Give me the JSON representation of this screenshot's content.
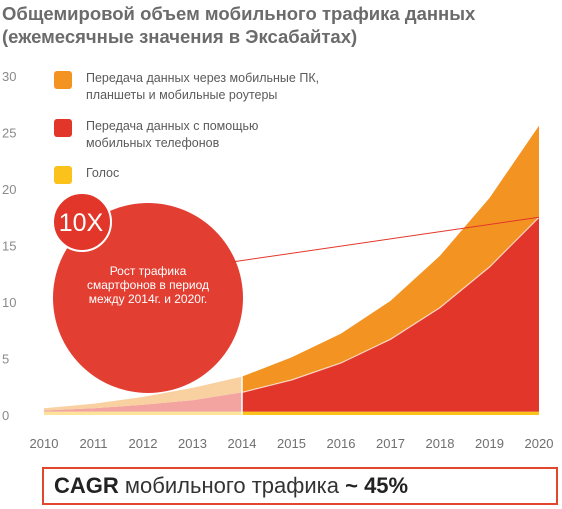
{
  "header": {
    "title_line1": "Общемировой объем мобильного трафика данных",
    "title_line2": "(ежемесячные значения в Эксабайтах)"
  },
  "legend": [
    {
      "label_line1": "Передача данных через мобильные ПК,",
      "label_line2": "планшеты и мобильные роутеры",
      "color": "#f39322"
    },
    {
      "label_line1": "Передача данных с помощью",
      "label_line2": "мобильных телефонов",
      "color": "#e2362a"
    },
    {
      "label_line1": "Голос",
      "label_line2": "",
      "color": "#fbc21b"
    }
  ],
  "callout": {
    "badge": "10X",
    "text": "Рост трафика смартфонов в период между 2014г. и 2020г."
  },
  "footer": {
    "bold1": "CAGR",
    "mid": " мобильного трафика ",
    "bold2": "~ 45%"
  },
  "chart_data": {
    "type": "area",
    "stacked": true,
    "x": [
      2010,
      2011,
      2012,
      2013,
      2014,
      2015,
      2016,
      2017,
      2018,
      2019,
      2020
    ],
    "xlabels": [
      "2010",
      "2011",
      "2012",
      "2013",
      "2014",
      "2015",
      "2016",
      "2017",
      "2018",
      "2019",
      "2020"
    ],
    "yticks": [
      0,
      5,
      10,
      15,
      20,
      25,
      30
    ],
    "ylim": [
      0,
      30
    ],
    "highlight_from": 2014,
    "series": [
      {
        "name": "Голос",
        "color": "#fbc21b",
        "values": [
          0.3,
          0.3,
          0.3,
          0.3,
          0.3,
          0.3,
          0.3,
          0.3,
          0.3,
          0.3,
          0.3
        ]
      },
      {
        "name": "Передача данных с помощью мобильных телефонов",
        "color": "#e2362a",
        "values": [
          0.1,
          0.3,
          0.6,
          1.0,
          1.7,
          2.8,
          4.3,
          6.4,
          9.2,
          12.8,
          17.2
        ]
      },
      {
        "name": "Передача данных через мобильные ПК, планшеты и мобильные роутеры",
        "color": "#f39322",
        "values": [
          0.2,
          0.4,
          0.7,
          1.1,
          1.4,
          2.0,
          2.6,
          3.4,
          4.6,
          6.1,
          8.1
        ]
      }
    ],
    "xlabel": "",
    "ylabel": ""
  }
}
